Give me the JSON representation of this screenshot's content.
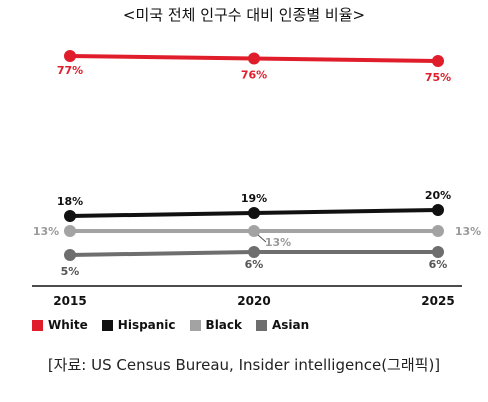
{
  "title": "<미국 전체 인구수 대비 인종별 비율>",
  "source": "[자료: US Census Bureau, Insider intelligence(그래픽)]",
  "chart_data": {
    "type": "line",
    "x": [
      "2015",
      "2020",
      "2025"
    ],
    "series": [
      {
        "name": "White",
        "values": [
          77,
          76,
          75
        ],
        "labels": [
          "77%",
          "76%",
          "75%"
        ],
        "color": "#e01e2b"
      },
      {
        "name": "Hispanic",
        "values": [
          18,
          19,
          20
        ],
        "labels": [
          "18%",
          "19%",
          "20%"
        ],
        "color": "#111111"
      },
      {
        "name": "Black",
        "values": [
          13,
          13,
          13
        ],
        "labels": [
          "13%",
          "13%",
          "13%"
        ],
        "color": "#a3a3a3"
      },
      {
        "name": "Asian",
        "values": [
          5,
          6,
          6
        ],
        "labels": [
          "5%",
          "6%",
          "6%"
        ],
        "color": "#6e6e6e"
      }
    ],
    "grid": false,
    "legend": "bottom-left"
  }
}
